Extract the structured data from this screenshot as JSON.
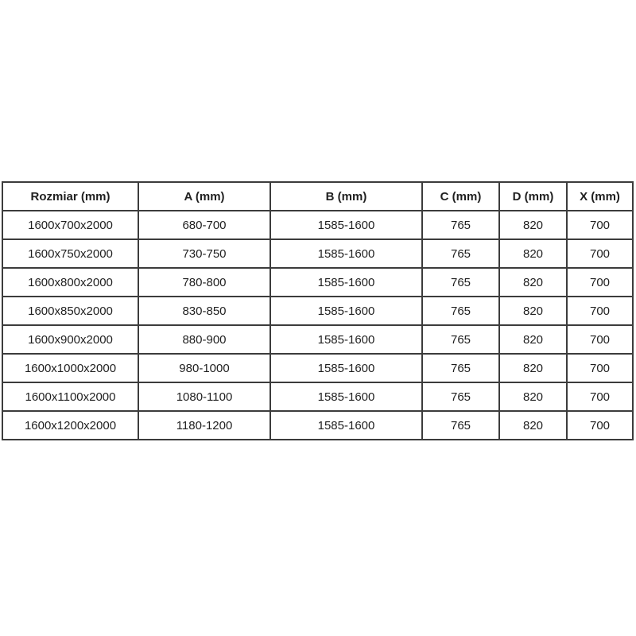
{
  "table": {
    "columns": [
      {
        "key": "rozmiar",
        "label": "Rozmiar (mm)"
      },
      {
        "key": "a",
        "label": "A (mm)"
      },
      {
        "key": "b",
        "label": "B (mm)"
      },
      {
        "key": "c",
        "label": "C (mm)"
      },
      {
        "key": "d",
        "label": "D (mm)"
      },
      {
        "key": "x",
        "label": "X (mm)"
      }
    ],
    "rows": [
      [
        "1600x700x2000",
        "680-700",
        "1585-1600",
        "765",
        "820",
        "700"
      ],
      [
        "1600x750x2000",
        "730-750",
        "1585-1600",
        "765",
        "820",
        "700"
      ],
      [
        "1600x800x2000",
        "780-800",
        "1585-1600",
        "765",
        "820",
        "700"
      ],
      [
        "1600x850x2000",
        "830-850",
        "1585-1600",
        "765",
        "820",
        "700"
      ],
      [
        "1600x900x2000",
        "880-900",
        "1585-1600",
        "765",
        "820",
        "700"
      ],
      [
        "1600x1000x2000",
        "980-1000",
        "1585-1600",
        "765",
        "820",
        "700"
      ],
      [
        "1600x1100x2000",
        "1080-1100",
        "1585-1600",
        "765",
        "820",
        "700"
      ],
      [
        "1600x1200x2000",
        "1180-1200",
        "1585-1600",
        "765",
        "820",
        "700"
      ]
    ],
    "colors": {
      "border": "#3c3c3c",
      "text": "#1f1f1f",
      "background": "#ffffff"
    }
  }
}
